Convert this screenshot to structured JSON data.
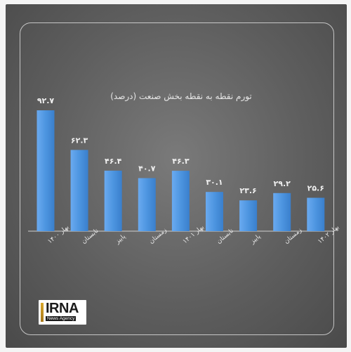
{
  "chart_data": {
    "type": "bar",
    "title": "تورم نقطه به نقطه بخش صنعت (درصد)",
    "xlabel": "",
    "ylabel": "",
    "ylim": [
      0,
      100
    ],
    "grid": false,
    "bar_color": "#4d95e0",
    "categories": [
      "بهار ۱۴۰۰",
      "تابستان",
      "پاییز",
      "زمستان",
      "بهار ۱۴۰۱",
      "تابستان",
      "پاییز",
      "زمستان",
      "بهار ۱۴۰۲"
    ],
    "values": [
      92.7,
      62.3,
      46.4,
      40.7,
      46.3,
      30.1,
      23.6,
      29.2,
      25.6
    ],
    "value_labels": [
      "۹۲.۷",
      "۶۲.۳",
      "۴۶.۴",
      "۴۰.۷",
      "۴۶.۳",
      "۳۰.۱",
      "۲۳.۶",
      "۲۹.۲",
      "۲۵.۶"
    ]
  },
  "logo": {
    "name": "IRNA",
    "subtitle": "News Agency"
  }
}
